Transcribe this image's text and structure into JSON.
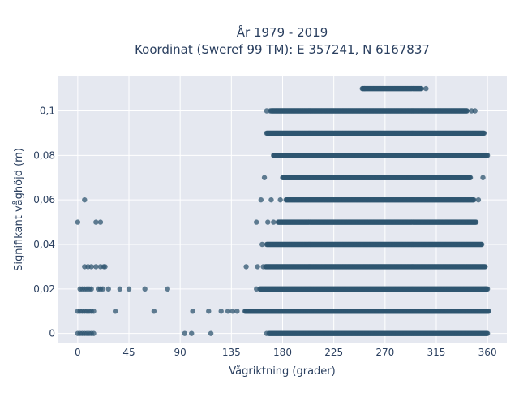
{
  "chart_data": {
    "type": "scatter",
    "title_lines": [
      "År 1979 - 2019",
      "Koordinat (Sweref 99 TM): E 357241, N 6167837"
    ],
    "xlabel": "Vågriktning (grader)",
    "ylabel": "Signifikant våghöjd (m)",
    "xlim": [
      -17,
      377
    ],
    "ylim": [
      -0.0045,
      0.1155
    ],
    "x_ticks": [
      0,
      45,
      90,
      135,
      180,
      225,
      270,
      315,
      360
    ],
    "x_tick_labels": [
      "0",
      "45",
      "90",
      "135",
      "180",
      "225",
      "270",
      "315",
      "360"
    ],
    "y_ticks": [
      0,
      0.02,
      0.04,
      0.06,
      0.08,
      0.1
    ],
    "y_tick_labels": [
      "0",
      "0,02",
      "0,04",
      "0,06",
      "0,08",
      "0,1"
    ],
    "grid": true,
    "marker_color": "#2f5570",
    "plot_background": "#e5e8f0",
    "dense_bands": [
      {
        "y": 0.11,
        "x_from": 250,
        "x_to": 302
      },
      {
        "y": 0.1,
        "x_from": 170,
        "x_to": 342
      },
      {
        "y": 0.09,
        "x_from": 166,
        "x_to": 357
      },
      {
        "y": 0.08,
        "x_from": 172,
        "x_to": 360
      },
      {
        "y": 0.07,
        "x_from": 180,
        "x_to": 345
      },
      {
        "y": 0.06,
        "x_from": 183,
        "x_to": 348
      },
      {
        "y": 0.05,
        "x_from": 176,
        "x_to": 350
      },
      {
        "y": 0.04,
        "x_from": 166,
        "x_to": 355
      },
      {
        "y": 0.03,
        "x_from": 165,
        "x_to": 358
      },
      {
        "y": 0.02,
        "x_from": 160,
        "x_to": 360
      },
      {
        "y": 0.01,
        "x_from": 147,
        "x_to": 361
      },
      {
        "y": 0.0,
        "x_from": 168,
        "x_to": 360
      }
    ],
    "scattered_points": [
      {
        "x": 0,
        "y": 0.05
      },
      {
        "x": 6,
        "y": 0.06
      },
      {
        "x": 16,
        "y": 0.05
      },
      {
        "x": 20,
        "y": 0.05
      },
      {
        "x": 6,
        "y": 0.03
      },
      {
        "x": 9,
        "y": 0.03
      },
      {
        "x": 12,
        "y": 0.03
      },
      {
        "x": 16,
        "y": 0.03
      },
      {
        "x": 20,
        "y": 0.03
      },
      {
        "x": 23,
        "y": 0.03
      },
      {
        "x": 24,
        "y": 0.03
      },
      {
        "x": 2,
        "y": 0.02
      },
      {
        "x": 4,
        "y": 0.02
      },
      {
        "x": 6,
        "y": 0.02
      },
      {
        "x": 8,
        "y": 0.02
      },
      {
        "x": 10,
        "y": 0.02
      },
      {
        "x": 12,
        "y": 0.02
      },
      {
        "x": 18,
        "y": 0.02
      },
      {
        "x": 20,
        "y": 0.02
      },
      {
        "x": 22,
        "y": 0.02
      },
      {
        "x": 27,
        "y": 0.02
      },
      {
        "x": 37,
        "y": 0.02
      },
      {
        "x": 45,
        "y": 0.02
      },
      {
        "x": 59,
        "y": 0.02
      },
      {
        "x": 79,
        "y": 0.02
      },
      {
        "x": 0,
        "y": 0.01
      },
      {
        "x": 2,
        "y": 0.01
      },
      {
        "x": 4,
        "y": 0.01
      },
      {
        "x": 6,
        "y": 0.01
      },
      {
        "x": 8,
        "y": 0.01
      },
      {
        "x": 10,
        "y": 0.01
      },
      {
        "x": 12,
        "y": 0.01
      },
      {
        "x": 14,
        "y": 0.01
      },
      {
        "x": 33,
        "y": 0.01
      },
      {
        "x": 67,
        "y": 0.01
      },
      {
        "x": 101,
        "y": 0.01
      },
      {
        "x": 115,
        "y": 0.01
      },
      {
        "x": 126,
        "y": 0.01
      },
      {
        "x": 132,
        "y": 0.01
      },
      {
        "x": 136,
        "y": 0.01
      },
      {
        "x": 140,
        "y": 0.01
      },
      {
        "x": 0,
        "y": 0.0
      },
      {
        "x": 2,
        "y": 0.0
      },
      {
        "x": 4,
        "y": 0.0
      },
      {
        "x": 6,
        "y": 0.0
      },
      {
        "x": 8,
        "y": 0.0
      },
      {
        "x": 10,
        "y": 0.0
      },
      {
        "x": 12,
        "y": 0.0
      },
      {
        "x": 14,
        "y": 0.0
      },
      {
        "x": 94,
        "y": 0.0
      },
      {
        "x": 100,
        "y": 0.0
      },
      {
        "x": 117,
        "y": 0.0
      },
      {
        "x": 306,
        "y": 0.11
      },
      {
        "x": 252,
        "y": 0.11
      },
      {
        "x": 166,
        "y": 0.1
      },
      {
        "x": 169,
        "y": 0.1
      },
      {
        "x": 346,
        "y": 0.1
      },
      {
        "x": 349,
        "y": 0.1
      },
      {
        "x": 164,
        "y": 0.07
      },
      {
        "x": 356,
        "y": 0.07
      },
      {
        "x": 180,
        "y": 0.08
      },
      {
        "x": 161,
        "y": 0.06
      },
      {
        "x": 170,
        "y": 0.06
      },
      {
        "x": 178,
        "y": 0.06
      },
      {
        "x": 352,
        "y": 0.06
      },
      {
        "x": 157,
        "y": 0.05
      },
      {
        "x": 167,
        "y": 0.05
      },
      {
        "x": 172,
        "y": 0.05
      },
      {
        "x": 162,
        "y": 0.04
      },
      {
        "x": 148,
        "y": 0.03
      },
      {
        "x": 158,
        "y": 0.03
      },
      {
        "x": 163,
        "y": 0.03
      },
      {
        "x": 157,
        "y": 0.02
      },
      {
        "x": 358,
        "y": 0.02
      },
      {
        "x": 166,
        "y": 0.0
      }
    ]
  }
}
